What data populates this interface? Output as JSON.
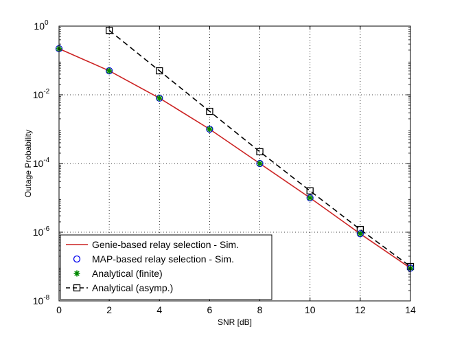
{
  "chart_data": {
    "type": "line",
    "title": "",
    "xlabel": "SNR [dB]",
    "ylabel": "Outage Probability",
    "xlim": [
      0,
      14
    ],
    "ylim": [
      1e-08,
      1
    ],
    "yscale": "log",
    "grid": true,
    "legend_position": "bottom-left",
    "x_ticks": [
      0,
      2,
      4,
      6,
      8,
      10,
      12,
      14
    ],
    "x_tick_labels": [
      "0",
      "2",
      "4",
      "6",
      "8",
      "10",
      "12",
      "14"
    ],
    "y_ticks": [
      {
        "value": 1,
        "base": "10",
        "exp": "0"
      },
      {
        "value": 0.01,
        "base": "10",
        "exp": "-2"
      },
      {
        "value": 0.0001,
        "base": "10",
        "exp": "-4"
      },
      {
        "value": 1e-06,
        "base": "10",
        "exp": "-6"
      },
      {
        "value": 1e-08,
        "base": "10",
        "exp": "-8"
      }
    ],
    "series": [
      {
        "name": "Genie-based relay selection - Sim.",
        "color": "#cc2222",
        "line": "solid",
        "marker": "none",
        "x": [
          0,
          2,
          4,
          6,
          8,
          10,
          12,
          14
        ],
        "y": [
          0.22,
          0.05,
          0.008,
          0.001,
          0.0001,
          1e-05,
          9e-07,
          9e-08
        ]
      },
      {
        "name": "MAP-based relay selection - Sim.",
        "color": "#0000ee",
        "line": "none",
        "marker": "circle",
        "x": [
          0,
          2,
          4,
          6,
          8,
          10,
          12,
          14
        ],
        "y": [
          0.22,
          0.05,
          0.008,
          0.001,
          0.0001,
          1e-05,
          9e-07,
          9e-08
        ]
      },
      {
        "name": "Analytical (finite)",
        "color": "#008800",
        "line": "none",
        "marker": "star",
        "x": [
          0,
          2,
          4,
          6,
          8,
          10,
          12,
          14
        ],
        "y": [
          0.22,
          0.05,
          0.008,
          0.001,
          0.0001,
          1e-05,
          9e-07,
          9e-08
        ]
      },
      {
        "name": "Analytical (asymp.)",
        "color": "#000000",
        "line": "dashed",
        "marker": "square",
        "x": [
          2,
          4,
          6,
          8,
          10,
          12,
          14
        ],
        "y": [
          0.75,
          0.05,
          0.0033,
          0.00022,
          1.6e-05,
          1.2e-06,
          1e-07
        ]
      }
    ]
  }
}
